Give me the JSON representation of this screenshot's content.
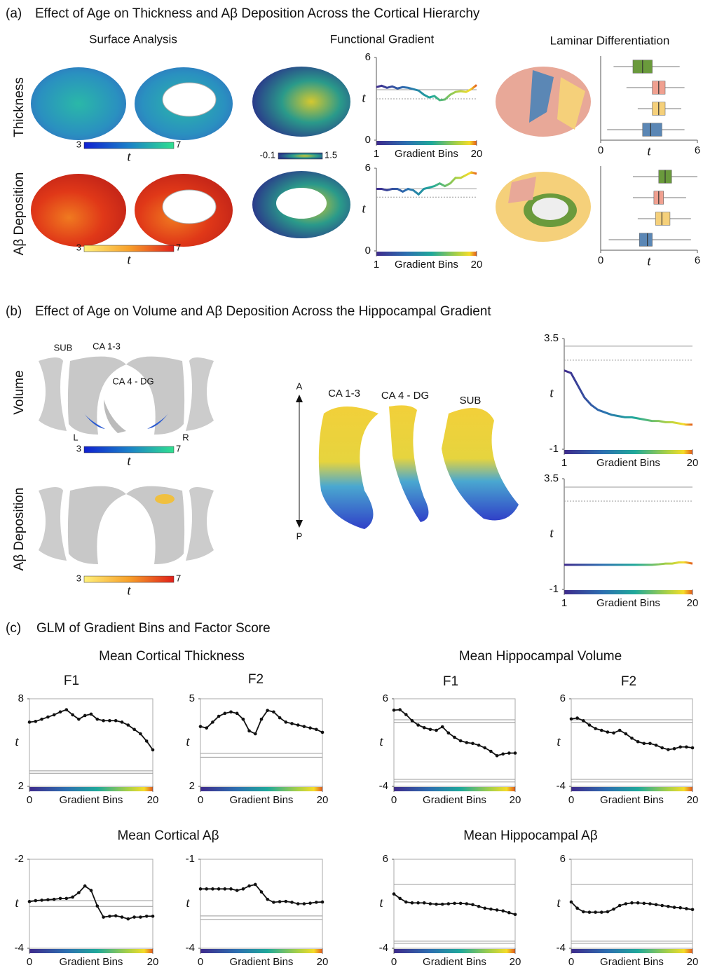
{
  "panels": [
    {
      "label": "(a)",
      "title": "Effect of Age on Thickness and Aβ Deposition Across the Cortical Hierarchy",
      "columns": [
        "Surface Analysis",
        "Functional Gradient",
        "Laminar Differentiation"
      ],
      "rows": [
        "Thickness",
        "Aβ Deposition"
      ],
      "colorbars": [
        {
          "min": 3,
          "max": 7,
          "label": "t"
        },
        {
          "min": -0.1,
          "max": 1.5
        },
        {
          "min": 3,
          "max": 7,
          "label": "t"
        }
      ]
    },
    {
      "label": "(b)",
      "title": "Effect of Age on Volume and Aβ Deposition Across the Hippocampal Gradient",
      "rows": [
        "Volume",
        "Aβ Deposition"
      ],
      "structures": [
        "SUB",
        "CA 1-3",
        "CA 4 - DG"
      ],
      "hemispheres": [
        "L",
        "R"
      ],
      "axis": [
        "A",
        "P"
      ],
      "subfields": [
        "CA 1-3",
        "CA 4 - DG",
        "SUB"
      ],
      "colorbars": [
        {
          "min": 3,
          "max": 7,
          "label": "t"
        },
        {
          "min": 3,
          "max": 7,
          "label": "t"
        }
      ]
    },
    {
      "label": "(c)",
      "title": "GLM of Gradient Bins and Factor Score",
      "headings": [
        "Mean Cortical Thickness",
        "Mean Hippocampal Volume",
        "Mean Cortical Aβ",
        "Mean Hippocampal Aβ"
      ],
      "factors": [
        "F1",
        "F2",
        "F1",
        "F2"
      ]
    }
  ],
  "chart_data": [
    {
      "type": "line",
      "line_color": "viridis",
      "markers": false,
      "frame": false,
      "ylabel": "t",
      "xlabel": "Gradient Bins",
      "xlim": [
        1,
        20
      ],
      "xticks": [
        1,
        20
      ],
      "ylim": [
        0,
        6
      ],
      "yticks": [
        0,
        6
      ],
      "ref_lines": [
        3.66,
        3.0
      ],
      "x": [
        1,
        2,
        3,
        4,
        5,
        6,
        7,
        8,
        9,
        10,
        11,
        12,
        13,
        14,
        15,
        16,
        17,
        18,
        19,
        20
      ],
      "values": [
        3.85,
        3.95,
        3.8,
        3.9,
        3.75,
        3.85,
        3.8,
        3.7,
        3.6,
        3.3,
        3.1,
        3.2,
        2.9,
        2.95,
        3.3,
        3.5,
        3.55,
        3.5,
        3.7,
        4.0
      ]
    },
    {
      "type": "line",
      "line_color": "viridis",
      "markers": false,
      "frame": false,
      "ylabel": "t",
      "xlabel": "Gradient Bins",
      "xlim": [
        1,
        20
      ],
      "xticks": [
        1,
        20
      ],
      "ylim": [
        0,
        6
      ],
      "yticks": [
        0,
        6
      ],
      "ref_lines": [
        4.5,
        3.9
      ],
      "x": [
        1,
        2,
        3,
        4,
        5,
        6,
        7,
        8,
        9,
        10,
        11,
        12,
        13,
        14,
        15,
        16,
        17,
        18,
        19,
        20
      ],
      "values": [
        4.5,
        4.5,
        4.4,
        4.5,
        4.5,
        4.3,
        4.5,
        4.4,
        4.1,
        4.5,
        4.6,
        4.7,
        4.9,
        4.7,
        4.9,
        5.3,
        5.3,
        5.5,
        5.7,
        5.6
      ]
    },
    {
      "type": "box",
      "xlabel": "t",
      "xlim": [
        0,
        6
      ],
      "xticks": [
        0,
        6
      ],
      "boxes": [
        {
          "color": "#6a9a3c",
          "whisker_low": 0.8,
          "q1": 2.0,
          "median": 2.6,
          "q3": 3.2,
          "whisker_high": 4.9
        },
        {
          "color": "#f0a090",
          "whisker_low": 1.6,
          "q1": 3.2,
          "median": 3.6,
          "q3": 4.0,
          "whisker_high": 5.2
        },
        {
          "color": "#f5d07a",
          "whisker_low": 2.3,
          "q1": 3.2,
          "median": 3.6,
          "q3": 4.0,
          "whisker_high": 5.0
        },
        {
          "color": "#5b87b5",
          "whisker_low": 0.4,
          "q1": 2.6,
          "median": 3.1,
          "q3": 3.8,
          "whisker_high": 5.2
        }
      ]
    },
    {
      "type": "box",
      "xlabel": "t",
      "xlim": [
        0,
        6
      ],
      "xticks": [
        0,
        6
      ],
      "boxes": [
        {
          "color": "#6a9a3c",
          "whisker_low": 2.0,
          "q1": 3.6,
          "median": 4.0,
          "q3": 4.4,
          "whisker_high": 6.0
        },
        {
          "color": "#f0a090",
          "whisker_low": 2.0,
          "q1": 3.3,
          "median": 3.6,
          "q3": 3.9,
          "whisker_high": 5.3
        },
        {
          "color": "#f5d07a",
          "whisker_low": 2.3,
          "q1": 3.4,
          "median": 3.8,
          "q3": 4.3,
          "whisker_high": 5.6
        },
        {
          "color": "#5b87b5",
          "whisker_low": 0.5,
          "q1": 2.4,
          "median": 2.9,
          "q3": 3.2,
          "whisker_high": 5.6
        }
      ]
    },
    {
      "type": "line",
      "line_color": "viridis",
      "markers": false,
      "frame": false,
      "ylabel": "t",
      "xlabel": "Gradient Bins",
      "xlim": [
        1,
        20
      ],
      "xticks": [
        1,
        20
      ],
      "ylim": [
        -1,
        3.5
      ],
      "yticks": [
        -1,
        3.5
      ],
      "ref_lines": [
        3.19,
        2.62
      ],
      "x": [
        1,
        2,
        3,
        4,
        5,
        6,
        7,
        8,
        9,
        10,
        11,
        12,
        13,
        14,
        15,
        16,
        17,
        18,
        19,
        20
      ],
      "values": [
        2.2,
        2.1,
        1.6,
        1.1,
        0.8,
        0.6,
        0.5,
        0.4,
        0.35,
        0.3,
        0.3,
        0.25,
        0.2,
        0.15,
        0.15,
        0.1,
        0.1,
        0.05,
        0.0,
        0.0
      ]
    },
    {
      "type": "line",
      "line_color": "viridis",
      "markers": false,
      "frame": false,
      "ylabel": "t",
      "xlabel": "Gradient Bins",
      "xlim": [
        1,
        20
      ],
      "xticks": [
        1,
        20
      ],
      "ylim": [
        -1,
        3.5
      ],
      "yticks": [
        -1,
        3.5
      ],
      "ref_lines": [
        3.16,
        2.59
      ],
      "x": [
        1,
        2,
        3,
        4,
        5,
        6,
        7,
        8,
        9,
        10,
        11,
        12,
        13,
        14,
        15,
        16,
        17,
        18,
        19,
        20
      ],
      "values": [
        0,
        0,
        0,
        0,
        0,
        0,
        0,
        0,
        0,
        0,
        0,
        0,
        0,
        0,
        0.02,
        0.05,
        0.05,
        0.1,
        0.1,
        0.05
      ]
    },
    {
      "type": "line",
      "line_color": "#111111",
      "markers": true,
      "frame": true,
      "ylabel": "t",
      "xlabel": "Gradient Bins",
      "xlim": [
        0,
        20
      ],
      "xticks": [
        0,
        20
      ],
      "ylim": [
        2,
        8
      ],
      "yticks": [
        2,
        8
      ],
      "ref_lines": [
        3.06,
        2.9
      ],
      "x": [
        0,
        1,
        2,
        3,
        4,
        5,
        6,
        7,
        8,
        9,
        10,
        11,
        12,
        13,
        14,
        15,
        16,
        17,
        18,
        19,
        20
      ],
      "values": [
        6.4,
        6.45,
        6.6,
        6.75,
        6.9,
        7.1,
        7.25,
        6.9,
        6.6,
        6.85,
        6.95,
        6.6,
        6.5,
        6.5,
        6.5,
        6.4,
        6.2,
        5.9,
        5.6,
        5.1,
        4.5
      ]
    },
    {
      "type": "line",
      "line_color": "#111111",
      "markers": true,
      "frame": true,
      "ylabel": "t",
      "xlabel": "Gradient Bins",
      "xlim": [
        0,
        20
      ],
      "xticks": [
        0,
        20
      ],
      "ylim": [
        2,
        5
      ],
      "yticks": [
        2,
        5
      ],
      "ref_lines": [
        3.13,
        3.0
      ],
      "x": [
        0,
        1,
        2,
        3,
        4,
        5,
        6,
        7,
        8,
        9,
        10,
        11,
        12,
        13,
        14,
        15,
        16,
        17,
        18,
        19,
        20
      ],
      "values": [
        4.05,
        4.0,
        4.2,
        4.4,
        4.5,
        4.55,
        4.5,
        4.3,
        3.9,
        3.8,
        4.3,
        4.6,
        4.55,
        4.35,
        4.2,
        4.15,
        4.1,
        4.05,
        4.0,
        3.95,
        3.85
      ]
    },
    {
      "type": "line",
      "line_color": "#111111",
      "markers": true,
      "frame": true,
      "ylabel": "t",
      "xlabel": "Gradient Bins",
      "xlim": [
        0,
        20
      ],
      "xticks": [
        0,
        20
      ],
      "ylim": [
        -4,
        6
      ],
      "yticks": [
        -4,
        6
      ],
      "ref_lines": [
        3.6,
        3.3,
        -3.2,
        -3.5
      ],
      "x": [
        0,
        1,
        2,
        3,
        4,
        5,
        6,
        7,
        8,
        9,
        10,
        11,
        12,
        13,
        14,
        15,
        16,
        17,
        18,
        19,
        20
      ],
      "values": [
        4.7,
        4.75,
        4.2,
        3.5,
        3.0,
        2.7,
        2.5,
        2.4,
        2.8,
        2.1,
        1.6,
        1.2,
        1.0,
        0.9,
        0.7,
        0.4,
        0.0,
        -0.5,
        -0.3,
        -0.2,
        -0.2
      ]
    },
    {
      "type": "line",
      "line_color": "#111111",
      "markers": true,
      "frame": true,
      "ylabel": "t",
      "xlabel": "Gradient Bins",
      "xlim": [
        0,
        20
      ],
      "xticks": [
        0,
        20
      ],
      "ylim": [
        -4,
        6
      ],
      "yticks": [
        -4,
        6
      ],
      "ref_lines": [
        3.6,
        3.3,
        -3.2,
        -3.5
      ],
      "x": [
        0,
        1,
        2,
        3,
        4,
        5,
        6,
        7,
        8,
        9,
        10,
        11,
        12,
        13,
        14,
        15,
        16,
        17,
        18,
        19,
        20
      ],
      "values": [
        3.7,
        3.8,
        3.5,
        3.0,
        2.6,
        2.4,
        2.2,
        2.1,
        2.4,
        2.0,
        1.5,
        1.1,
        0.9,
        0.9,
        0.7,
        0.4,
        0.2,
        0.3,
        0.5,
        0.5,
        0.4
      ]
    },
    {
      "type": "line",
      "line_color": "#111111",
      "markers": true,
      "frame": true,
      "ylabel": "t",
      "xlabel": "Gradient Bins",
      "xlim": [
        0,
        20
      ],
      "xticks": [
        0,
        20
      ],
      "ylim": [
        -4,
        -2
      ],
      "yticks": [
        -4,
        -2
      ],
      "ref_lines": [
        -2.93,
        -3.06
      ],
      "x": [
        0,
        1,
        2,
        3,
        4,
        5,
        6,
        7,
        8,
        9,
        10,
        11,
        12,
        13,
        14,
        15,
        16,
        17,
        18,
        19,
        20
      ],
      "values": [
        -2.95,
        -2.93,
        -2.92,
        -2.91,
        -2.9,
        -2.88,
        -2.88,
        -2.85,
        -2.75,
        -2.6,
        -2.7,
        -3.05,
        -3.3,
        -3.28,
        -3.27,
        -3.3,
        -3.34,
        -3.3,
        -3.3,
        -3.28,
        -3.28
      ]
    },
    {
      "type": "line",
      "line_color": "#111111",
      "markers": true,
      "frame": true,
      "ylabel": "t",
      "xlabel": "Gradient Bins",
      "xlim": [
        0,
        20
      ],
      "xticks": [
        0,
        20
      ],
      "ylim": [
        -4,
        -1
      ],
      "yticks": [
        -4,
        -1
      ],
      "ref_lines": [
        -2.91,
        -3.03
      ],
      "x": [
        0,
        1,
        2,
        3,
        4,
        5,
        6,
        7,
        8,
        9,
        10,
        11,
        12,
        13,
        14,
        15,
        16,
        17,
        18,
        19,
        20
      ],
      "values": [
        -2.0,
        -2.0,
        -2.0,
        -2.0,
        -2.0,
        -2.0,
        -2.05,
        -2.0,
        -1.9,
        -1.85,
        -2.1,
        -2.35,
        -2.45,
        -2.43,
        -2.42,
        -2.45,
        -2.5,
        -2.5,
        -2.48,
        -2.45,
        -2.44
      ]
    },
    {
      "type": "line",
      "line_color": "#111111",
      "markers": true,
      "frame": true,
      "ylabel": "t",
      "xlabel": "Gradient Bins",
      "xlim": [
        0,
        20
      ],
      "xticks": [
        0,
        20
      ],
      "ylim": [
        -4,
        6
      ],
      "yticks": [
        -4,
        6
      ],
      "ref_lines": [
        3.2,
        -3.2,
        -3.45
      ],
      "x": [
        0,
        1,
        2,
        3,
        4,
        5,
        6,
        7,
        8,
        9,
        10,
        11,
        12,
        13,
        14,
        15,
        16,
        17,
        18,
        19,
        20
      ],
      "values": [
        2.1,
        1.6,
        1.2,
        1.1,
        1.1,
        1.1,
        1.0,
        0.95,
        0.95,
        1.0,
        1.05,
        1.05,
        1.0,
        0.9,
        0.7,
        0.5,
        0.4,
        0.3,
        0.2,
        0.0,
        -0.2
      ]
    },
    {
      "type": "line",
      "line_color": "#111111",
      "markers": true,
      "frame": true,
      "ylabel": "t",
      "xlabel": "Gradient Bins",
      "xlim": [
        0,
        20
      ],
      "xticks": [
        0,
        20
      ],
      "ylim": [
        -4,
        6
      ],
      "yticks": [
        -4,
        6
      ],
      "ref_lines": [
        3.2,
        -3.2,
        -3.45
      ],
      "x": [
        0,
        1,
        2,
        3,
        4,
        5,
        6,
        7,
        8,
        9,
        10,
        11,
        12,
        13,
        14,
        15,
        16,
        17,
        18,
        19,
        20
      ],
      "values": [
        1.2,
        0.5,
        0.1,
        0.05,
        0.05,
        0.05,
        0.1,
        0.4,
        0.8,
        1.0,
        1.1,
        1.1,
        1.05,
        1.0,
        0.9,
        0.8,
        0.7,
        0.6,
        0.55,
        0.45,
        0.35
      ]
    }
  ]
}
